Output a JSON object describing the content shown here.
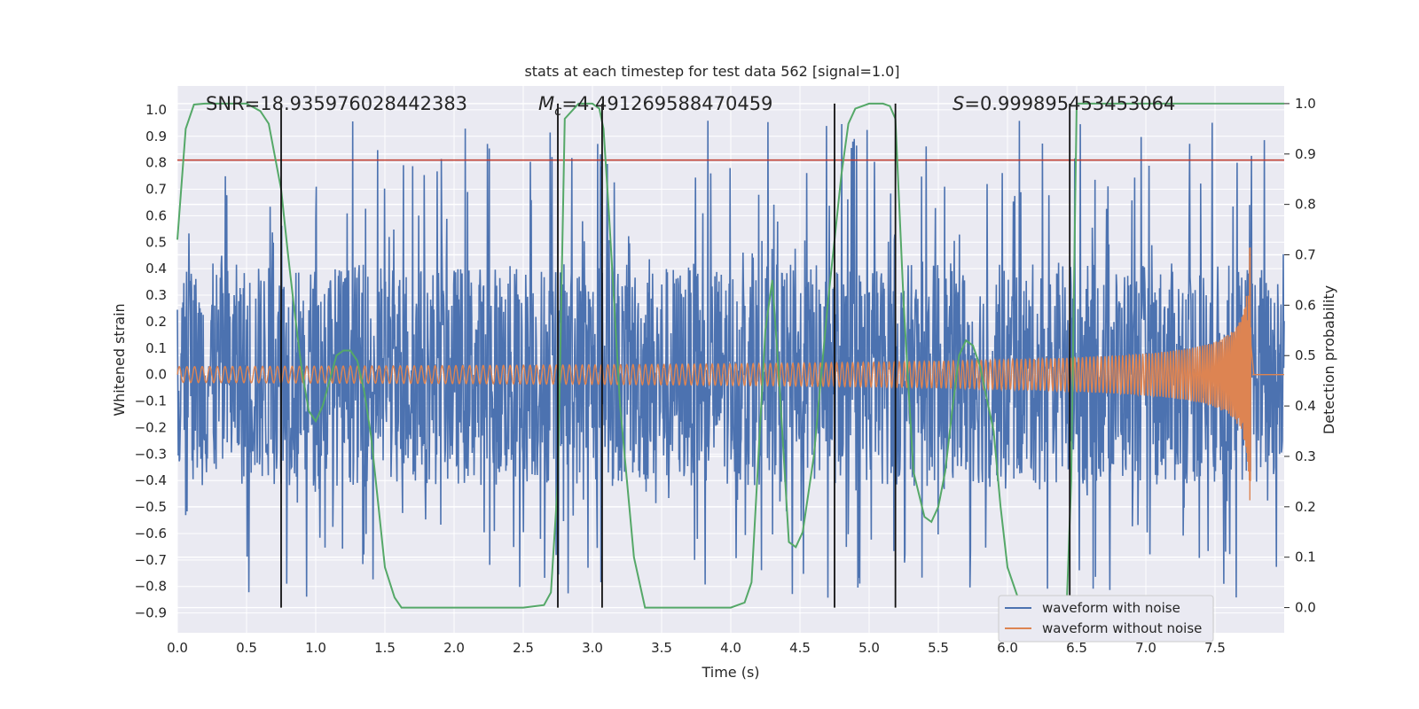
{
  "chart_data": {
    "type": "line",
    "title": "stats at each timestep for test data 562 [signal=1.0]",
    "xlabel": "Time (s)",
    "ylabel": "Whitened strain",
    "y2label": "Detection probability",
    "xlim": [
      0.0,
      8.0
    ],
    "ylim": [
      -0.975,
      1.09
    ],
    "y2lim": [
      -0.05,
      1.035
    ],
    "xticks": [
      "0.0",
      "0.5",
      "1.0",
      "1.5",
      "2.0",
      "2.5",
      "3.0",
      "3.5",
      "4.0",
      "4.5",
      "5.0",
      "5.5",
      "6.0",
      "6.5",
      "7.0",
      "7.5"
    ],
    "yticks": [
      "1.0",
      "0.9",
      "0.8",
      "0.7",
      "0.6",
      "0.5",
      "0.4",
      "0.3",
      "0.2",
      "0.1",
      "0.0",
      "−0.1",
      "−0.2",
      "−0.3",
      "−0.4",
      "−0.5",
      "−0.6",
      "−0.7",
      "−0.8",
      "−0.9"
    ],
    "y2ticks": [
      "1.0",
      "0.9",
      "0.8",
      "0.7",
      "0.6",
      "0.5",
      "0.4",
      "0.3",
      "0.2",
      "0.1",
      "0.0"
    ],
    "grid": true,
    "annotations": {
      "snr": "SNR=18.935976028442383",
      "mc_symbol": "M",
      "mc_sub": "c",
      "mc_value": "=4.491269588470459",
      "s_symbol": "S",
      "s_value": "=0.999895453453064"
    },
    "legend": {
      "placement": "lower-right",
      "entries": [
        "waveform with noise",
        "waveform without noise"
      ]
    },
    "threshold_line": {
      "y": 0.81,
      "color": "#c0392b"
    },
    "vertical_markers": [
      0.75,
      2.75,
      3.07,
      4.75,
      5.19,
      6.45
    ],
    "series": [
      {
        "name": "waveform with noise",
        "color": "#4c72b0",
        "description_values": {
          "x_start": 0.0,
          "x_end": 8.0,
          "typical_amplitude": 0.42,
          "max": 0.96,
          "min": -0.85
        }
      },
      {
        "name": "waveform without noise",
        "color": "#dd8452",
        "description_values": {
          "x_start": 0.0,
          "x_end": 7.77,
          "amplitude_start": 0.03,
          "amplitude_peak": 0.48,
          "merger_time": 7.76
        }
      },
      {
        "name": "",
        "axis": "right",
        "color": "#55a868",
        "x": [
          0.0,
          0.06,
          0.12,
          0.2,
          0.35,
          0.5,
          0.6,
          0.66,
          0.75,
          0.8,
          0.85,
          0.9,
          0.95,
          1.0,
          1.05,
          1.1,
          1.15,
          1.2,
          1.25,
          1.3,
          1.35,
          1.4,
          1.45,
          1.5,
          1.57,
          1.62,
          1.7,
          2.0,
          2.5,
          2.65,
          2.7,
          2.75,
          2.8,
          2.9,
          3.0,
          3.05,
          3.08,
          3.12,
          3.2,
          3.3,
          3.38,
          3.5,
          4.0,
          4.1,
          4.15,
          4.2,
          4.25,
          4.3,
          4.35,
          4.42,
          4.47,
          4.52,
          4.6,
          4.7,
          4.75,
          4.8,
          4.85,
          4.9,
          5.0,
          5.1,
          5.15,
          5.19,
          5.25,
          5.32,
          5.4,
          5.45,
          5.5,
          5.55,
          5.6,
          5.65,
          5.7,
          5.75,
          5.8,
          5.9,
          5.95,
          6.0,
          6.1,
          6.2,
          6.3,
          6.4,
          6.43,
          6.46,
          6.5,
          6.55,
          7.0,
          8.0
        ],
        "y": [
          0.73,
          0.95,
          0.998,
          1.0,
          1.0,
          1.0,
          0.985,
          0.96,
          0.83,
          0.7,
          0.58,
          0.47,
          0.39,
          0.37,
          0.4,
          0.45,
          0.5,
          0.51,
          0.51,
          0.49,
          0.43,
          0.34,
          0.21,
          0.08,
          0.02,
          0.0,
          0.0,
          0.0,
          0.0,
          0.005,
          0.03,
          0.25,
          0.97,
          1.0,
          1.0,
          0.99,
          0.95,
          0.78,
          0.4,
          0.1,
          0.0,
          0.0,
          0.0,
          0.01,
          0.05,
          0.3,
          0.55,
          0.65,
          0.45,
          0.13,
          0.12,
          0.15,
          0.3,
          0.6,
          0.73,
          0.86,
          0.96,
          0.99,
          1.0,
          1.0,
          0.995,
          0.97,
          0.6,
          0.27,
          0.18,
          0.17,
          0.2,
          0.27,
          0.39,
          0.5,
          0.53,
          0.52,
          0.48,
          0.35,
          0.2,
          0.08,
          0.0,
          -0.02,
          -0.06,
          -0.04,
          0.02,
          0.25,
          1.0,
          1.0,
          1.0,
          1.0
        ]
      }
    ]
  }
}
